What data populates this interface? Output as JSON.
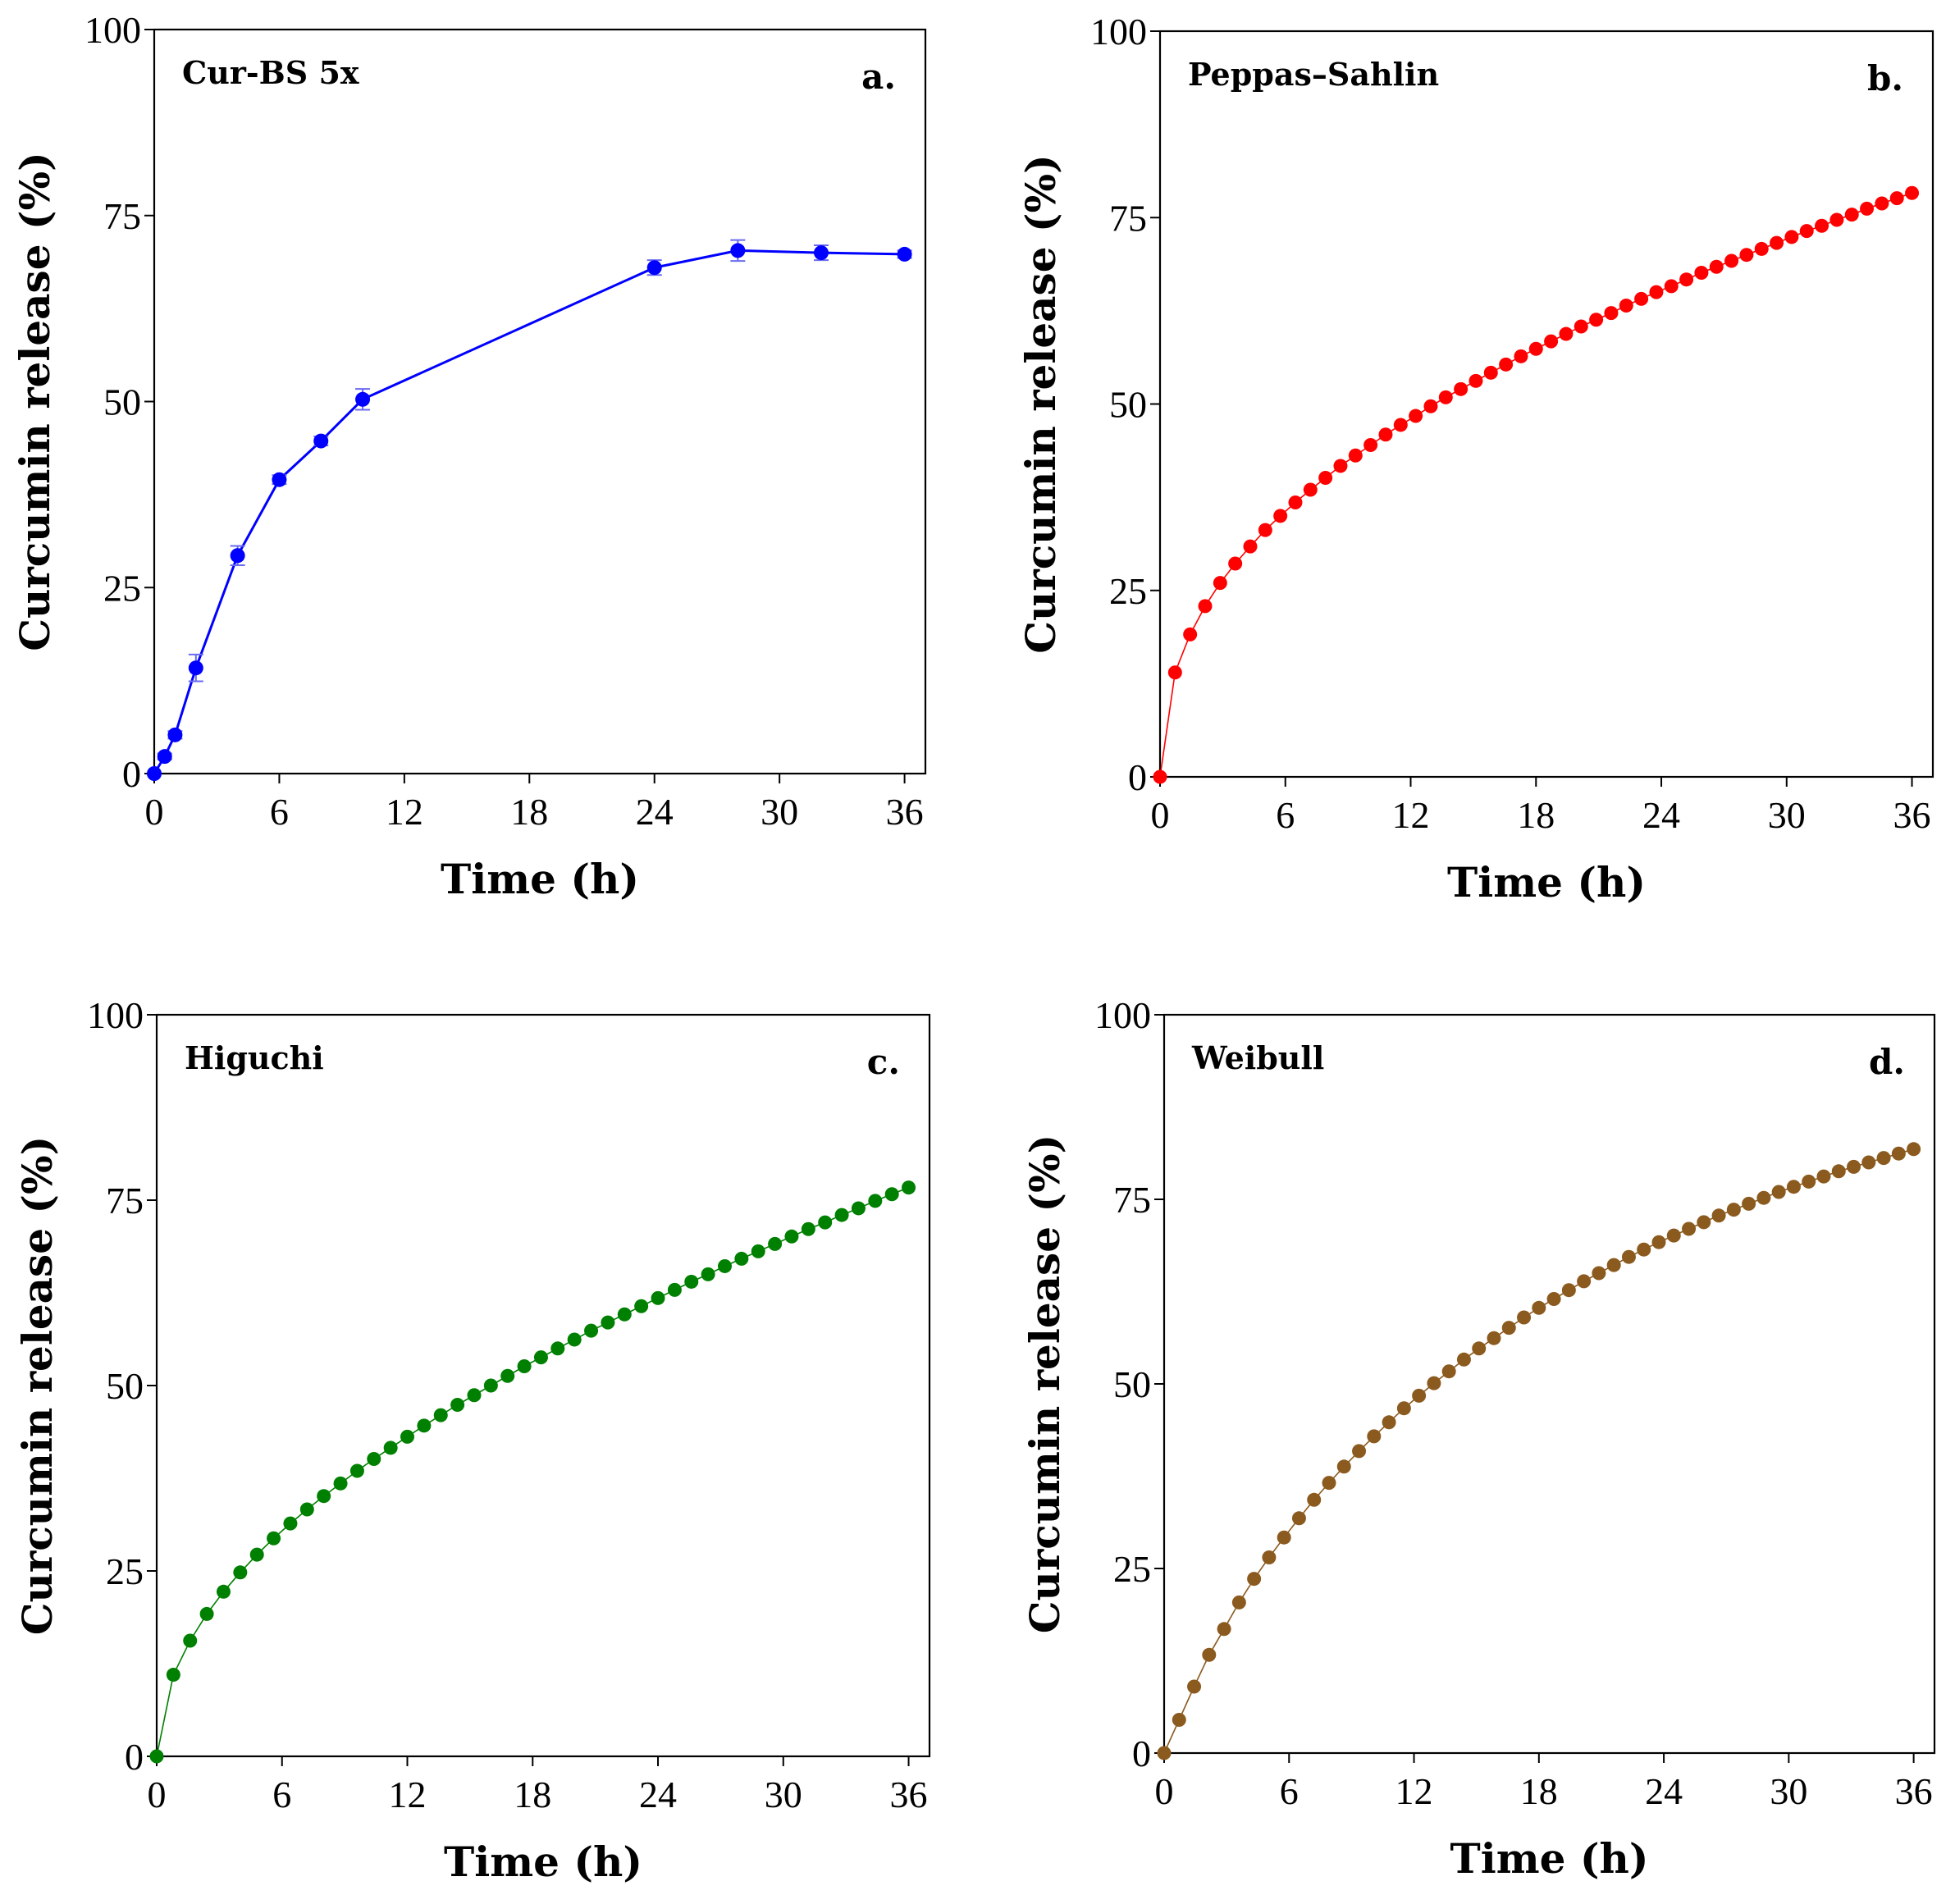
{
  "chart_data": [
    {
      "type": "line",
      "panel": "a.",
      "title": "Cur-BS 5x",
      "xlabel": "Time (h)",
      "ylabel": "Curcumin release (%)",
      "xlim": [
        0,
        37
      ],
      "ylim": [
        0,
        100
      ],
      "xticks": [
        0,
        6,
        12,
        18,
        24,
        30,
        36
      ],
      "yticks": [
        0,
        25,
        50,
        75,
        100
      ],
      "color": "#0000ff",
      "style": "experimental",
      "x": [
        0,
        0.5,
        1,
        2,
        4,
        6,
        8,
        10,
        24,
        28,
        32,
        36
      ],
      "y": [
        0,
        2.3,
        5.2,
        14.2,
        29.3,
        39.5,
        44.7,
        50.3,
        68.0,
        70.3,
        70.0,
        69.8
      ],
      "error": [
        0,
        0.4,
        0.5,
        1.8,
        1.3,
        0.6,
        0.6,
        1.4,
        1.0,
        1.4,
        1.0,
        0.5
      ]
    },
    {
      "type": "line",
      "panel": "b.",
      "title": "Peppas–Sahlin",
      "xlabel": "Time (h)",
      "ylabel": "Curcumin release (%)",
      "xlim": [
        0,
        37
      ],
      "ylim": [
        0,
        100
      ],
      "xticks": [
        0,
        6,
        12,
        18,
        24,
        30,
        36
      ],
      "yticks": [
        0,
        25,
        50,
        75,
        100
      ],
      "color": "#ff0000",
      "style": "model",
      "x": [
        0,
        0.72,
        1.44,
        2.16,
        2.88,
        3.6,
        4.32,
        5.04,
        5.76,
        6.48,
        7.2,
        7.92,
        8.64,
        9.36,
        10.08,
        10.8,
        11.52,
        12.24,
        12.96,
        13.68,
        14.4,
        15.12,
        15.84,
        16.56,
        17.28,
        18.0,
        18.72,
        19.44,
        20.16,
        20.88,
        21.6,
        22.32,
        23.04,
        23.76,
        24.48,
        25.2,
        25.92,
        26.64,
        27.36,
        28.08,
        28.8,
        29.52,
        30.24,
        30.96,
        31.68,
        32.4,
        33.12,
        33.84,
        34.56,
        35.28,
        36.0
      ],
      "y": [
        0,
        14.0,
        19.1,
        22.9,
        26.0,
        28.6,
        30.9,
        33.1,
        35.0,
        36.8,
        38.5,
        40.1,
        41.7,
        43.1,
        44.5,
        45.9,
        47.2,
        48.4,
        49.7,
        50.9,
        52.0,
        53.1,
        54.2,
        55.3,
        56.4,
        57.4,
        58.4,
        59.4,
        60.4,
        61.3,
        62.2,
        63.2,
        64.1,
        65.0,
        65.8,
        66.7,
        67.6,
        68.4,
        69.2,
        70.0,
        70.8,
        71.6,
        72.4,
        73.2,
        73.9,
        74.7,
        75.4,
        76.2,
        76.9,
        77.6,
        78.3
      ]
    },
    {
      "type": "line",
      "panel": "c.",
      "title": "Higuchi",
      "xlabel": "Time (h)",
      "ylabel": "Curcumin release (%)",
      "xlim": [
        0,
        37
      ],
      "ylim": [
        0,
        100
      ],
      "xticks": [
        0,
        6,
        12,
        18,
        24,
        30,
        36
      ],
      "yticks": [
        0,
        25,
        50,
        75,
        100
      ],
      "color": "#008000",
      "style": "model",
      "x": [
        0,
        0.8,
        1.6,
        2.4,
        3.2,
        4.0,
        4.8,
        5.6,
        6.4,
        7.2,
        8.0,
        8.8,
        9.6,
        10.4,
        11.2,
        12.0,
        12.8,
        13.6,
        14.4,
        15.2,
        16.0,
        16.8,
        17.6,
        18.4,
        19.2,
        20.0,
        20.8,
        21.6,
        22.4,
        23.2,
        24.0,
        24.8,
        25.6,
        26.4,
        27.2,
        28.0,
        28.8,
        29.6,
        30.4,
        31.2,
        32.0,
        32.8,
        33.6,
        34.4,
        35.2,
        36.0
      ],
      "y": [
        0,
        11.0,
        15.6,
        19.2,
        22.2,
        24.8,
        27.2,
        29.4,
        31.4,
        33.3,
        35.1,
        36.8,
        38.5,
        40.1,
        41.6,
        43.1,
        44.6,
        46.0,
        47.4,
        48.7,
        50.0,
        51.3,
        52.6,
        53.8,
        55.0,
        56.2,
        57.4,
        58.5,
        59.6,
        60.7,
        61.8,
        62.9,
        64.0,
        65.0,
        66.1,
        67.1,
        68.1,
        69.1,
        70.1,
        71.1,
        72.0,
        73.0,
        73.9,
        74.9,
        75.8,
        76.7
      ]
    },
    {
      "type": "line",
      "panel": "d.",
      "title": "Weibull",
      "xlabel": "Time (h)",
      "ylabel": "Curcumin release (%)",
      "xlim": [
        0,
        37
      ],
      "ylim": [
        0,
        100
      ],
      "xticks": [
        0,
        6,
        12,
        18,
        24,
        30,
        36
      ],
      "yticks": [
        0,
        25,
        50,
        75,
        100
      ],
      "color": "#8b5a1e",
      "style": "model",
      "x": [
        0,
        0.72,
        1.44,
        2.16,
        2.88,
        3.6,
        4.32,
        5.04,
        5.76,
        6.48,
        7.2,
        7.92,
        8.64,
        9.36,
        10.08,
        10.8,
        11.52,
        12.24,
        12.96,
        13.68,
        14.4,
        15.12,
        15.84,
        16.56,
        17.28,
        18.0,
        18.72,
        19.44,
        20.16,
        20.88,
        21.6,
        22.32,
        23.04,
        23.76,
        24.48,
        25.2,
        25.92,
        26.64,
        27.36,
        28.08,
        28.8,
        29.52,
        30.24,
        30.96,
        31.68,
        32.4,
        33.12,
        33.84,
        34.56,
        35.28,
        36.0
      ],
      "y": [
        0,
        4.5,
        9.0,
        13.3,
        16.8,
        20.4,
        23.6,
        26.5,
        29.2,
        31.8,
        34.3,
        36.6,
        38.8,
        40.9,
        42.9,
        44.8,
        46.7,
        48.4,
        50.1,
        51.7,
        53.3,
        54.8,
        56.2,
        57.6,
        59.0,
        60.3,
        61.5,
        62.7,
        63.9,
        65.0,
        66.1,
        67.2,
        68.2,
        69.2,
        70.1,
        71.0,
        71.9,
        72.8,
        73.6,
        74.4,
        75.2,
        76.0,
        76.7,
        77.4,
        78.1,
        78.8,
        79.4,
        80.0,
        80.6,
        81.2,
        81.8
      ]
    }
  ]
}
